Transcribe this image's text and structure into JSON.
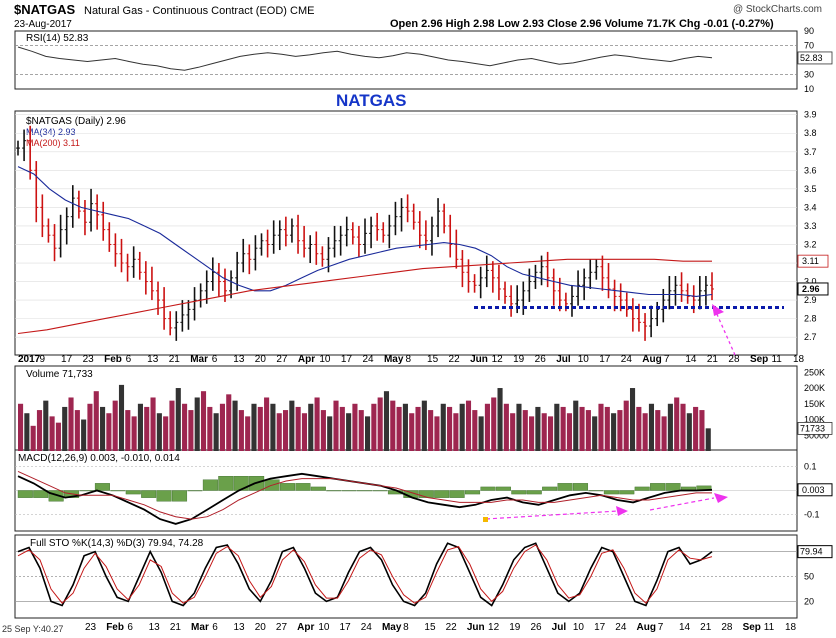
{
  "header": {
    "symbol": "$NATGAS",
    "description": "Natural Gas - Continuous Contract (EOD)",
    "exchange": "CME",
    "date": "23-Aug-2017",
    "ohlc_text": "Open 2.96  High 2.98  Low 2.93  Close 2.96  Volume 71.7K  Chg -0.01 (-0.27%)",
    "watermark": "@ StockCharts.com",
    "chart_label": "NATGAS"
  },
  "colors": {
    "up_bar": "#111111",
    "down_bar": "#cc1111",
    "ma34": "#1a2a9a",
    "ma200": "#c41818",
    "volume_up": "#333333",
    "volume_down": "#9e2650",
    "macd_hist": "#6aa04a",
    "annotation": "#ee33ee",
    "support_line": "#0a1aaa",
    "title_blue": "#1535c8"
  },
  "chart_data": [
    {
      "type": "line",
      "panel": "rsi",
      "legend": "RSI(14) 52.83",
      "ylim": [
        10,
        90
      ],
      "y_ticks": [
        "90",
        "70",
        "50",
        "30",
        "10"
      ],
      "last_value_label": "52.83",
      "series": [
        {
          "name": "RSI(14)",
          "values": [
            68,
            62,
            55,
            52,
            50,
            48,
            50,
            52,
            48,
            44,
            42,
            38,
            36,
            40,
            45,
            50,
            55,
            58,
            60,
            58,
            55,
            57,
            60,
            62,
            58,
            55,
            53,
            56,
            60,
            58,
            54,
            50,
            48,
            45,
            42,
            46,
            50,
            52,
            48,
            44,
            46,
            50,
            54,
            57,
            55,
            52,
            50,
            48,
            52,
            55,
            53
          ]
        }
      ]
    },
    {
      "type": "candlestick",
      "panel": "price",
      "legend": [
        "$NATGAS (Daily) 2.96",
        "MA(34) 2.93",
        "MA(200) 3.11"
      ],
      "ylim": [
        2.62,
        3.92
      ],
      "y_ticks": [
        "3.9",
        "3.8",
        "3.7",
        "3.6",
        "3.5",
        "3.4",
        "3.3",
        "3.2",
        "3.1",
        "3.0",
        "2.9",
        "2.8",
        "2.7"
      ],
      "x_labels": [
        "2017",
        "9",
        "17",
        "23",
        "Feb",
        "6",
        "13",
        "21",
        "Mar",
        "6",
        "13",
        "20",
        "27",
        "Apr",
        "10",
        "17",
        "24",
        "May",
        "8",
        "15",
        "22",
        "Jun",
        "12",
        "19",
        "26",
        "Jul",
        "10",
        "17",
        "24",
        "Aug",
        "7",
        "14",
        "21",
        "28",
        "Sep",
        "11",
        "18"
      ],
      "closes": [
        3.72,
        3.76,
        3.6,
        3.4,
        3.3,
        3.25,
        3.18,
        3.28,
        3.35,
        3.45,
        3.38,
        3.32,
        3.42,
        3.36,
        3.28,
        3.2,
        3.15,
        3.1,
        3.08,
        3.12,
        3.05,
        3.0,
        2.95,
        2.9,
        2.8,
        2.75,
        2.78,
        2.82,
        2.85,
        2.9,
        2.95,
        3.0,
        3.05,
        3.0,
        2.95,
        3.02,
        3.1,
        3.15,
        3.12,
        3.18,
        3.22,
        3.2,
        3.25,
        3.28,
        3.25,
        3.3,
        3.22,
        3.18,
        3.2,
        3.15,
        3.12,
        3.18,
        3.22,
        3.25,
        3.28,
        3.24,
        3.2,
        3.26,
        3.3,
        3.28,
        3.25,
        3.3,
        3.35,
        3.4,
        3.38,
        3.32,
        3.25,
        3.22,
        3.3,
        3.38,
        3.3,
        3.2,
        3.12,
        3.05,
        3.0,
        2.98,
        3.02,
        3.06,
        3.02,
        2.96,
        2.92,
        2.88,
        2.9,
        2.95,
        3.0,
        3.05,
        3.08,
        3.02,
        2.95,
        2.9,
        2.88,
        2.92,
        2.98,
        3.02,
        3.05,
        3.08,
        3.02,
        2.96,
        2.92,
        2.9,
        2.85,
        2.8,
        2.78,
        2.76,
        2.8,
        2.85,
        2.9,
        2.95,
        2.98,
        2.95,
        2.92,
        2.9,
        2.95,
        2.98,
        2.96
      ],
      "series": [
        {
          "name": "MA(34)",
          "values": [
            3.62,
            3.58,
            3.5,
            3.44,
            3.4,
            3.38,
            3.36,
            3.34,
            3.3,
            3.26,
            3.2,
            3.14,
            3.08,
            3.02,
            2.98,
            2.95,
            2.95,
            2.98,
            3.02,
            3.06,
            3.09,
            3.12,
            3.14,
            3.16,
            3.18,
            3.19,
            3.2,
            3.21,
            3.2,
            3.18,
            3.14,
            3.08,
            3.04,
            3.02,
            3.0,
            2.98,
            2.97,
            2.96,
            2.95,
            2.94,
            2.93,
            2.93,
            2.93,
            2.92,
            2.93
          ]
        },
        {
          "name": "MA(200)",
          "values": [
            2.72,
            2.74,
            2.77,
            2.8,
            2.83,
            2.86,
            2.89,
            2.92,
            2.95,
            2.97,
            2.99,
            3.01,
            3.03,
            3.05,
            3.07,
            3.08,
            3.09,
            3.1,
            3.11,
            3.12,
            3.12,
            3.12,
            3.12,
            3.11,
            3.11
          ]
        }
      ],
      "last_value_label": "2.96",
      "ma200_label": "3.11",
      "support_level": 2.86,
      "title_annotation": "NATGAS"
    },
    {
      "type": "bar",
      "panel": "volume",
      "legend": "Volume 71,733",
      "y_ticks": [
        "250K",
        "200K",
        "150K",
        "100K",
        "50000"
      ],
      "last_value_label": "71733",
      "values": [
        150,
        120,
        80,
        130,
        160,
        110,
        90,
        140,
        170,
        130,
        100,
        150,
        190,
        140,
        120,
        160,
        210,
        130,
        110,
        150,
        140,
        170,
        120,
        110,
        160,
        200,
        150,
        130,
        170,
        190,
        140,
        120,
        150,
        180,
        160,
        130,
        110,
        150,
        140,
        170,
        150,
        120,
        130,
        160,
        140,
        120,
        150,
        170,
        130,
        110,
        160,
        140,
        120,
        150,
        130,
        110,
        150,
        170,
        190,
        160,
        140,
        150,
        120,
        140,
        160,
        130,
        110,
        150,
        140,
        120,
        150,
        160,
        130,
        110,
        150,
        170,
        200,
        150,
        120,
        150,
        130,
        110,
        140,
        120,
        110,
        150,
        140,
        120,
        160,
        140,
        130,
        110,
        150,
        140,
        120,
        130,
        160,
        200,
        140,
        120,
        150,
        130,
        110,
        150,
        170,
        150,
        120,
        140,
        130,
        72
      ]
    },
    {
      "type": "line",
      "panel": "macd",
      "legend": "MACD(12,26,9) 0.003, -0.010, 0.014",
      "y_ticks": [
        "0.1",
        "0.0",
        "-0.1"
      ],
      "last_value_label": "0.003",
      "series": [
        {
          "name": "MACD",
          "values": [
            0.06,
            0.03,
            -0.01,
            -0.03,
            -0.02,
            0.0,
            -0.02,
            -0.05,
            -0.08,
            -0.12,
            -0.14,
            -0.12,
            -0.08,
            -0.04,
            0.0,
            0.03,
            0.05,
            0.06,
            0.07,
            0.06,
            0.05,
            0.04,
            0.03,
            0.02,
            0.0,
            -0.03,
            -0.05,
            -0.06,
            -0.07,
            -0.06,
            -0.04,
            -0.03,
            -0.05,
            -0.06,
            -0.04,
            -0.02,
            -0.01,
            -0.02,
            -0.04,
            -0.05,
            -0.03,
            -0.01,
            0.0,
            0.0,
            0.003
          ]
        },
        {
          "name": "Signal",
          "values": [
            0.08,
            0.05,
            0.02,
            -0.01,
            -0.02,
            -0.02,
            -0.02,
            -0.04,
            -0.06,
            -0.09,
            -0.11,
            -0.12,
            -0.11,
            -0.08,
            -0.04,
            -0.01,
            0.02,
            0.04,
            0.05,
            0.05,
            0.05,
            0.04,
            0.03,
            0.02,
            0.01,
            -0.01,
            -0.03,
            -0.04,
            -0.05,
            -0.05,
            -0.05,
            -0.04,
            -0.04,
            -0.05,
            -0.05,
            -0.04,
            -0.03,
            -0.02,
            -0.03,
            -0.04,
            -0.04,
            -0.03,
            -0.02,
            -0.01,
            -0.01
          ]
        }
      ]
    },
    {
      "type": "line",
      "panel": "stochastic",
      "legend": "Full STO %K(14,3) %D(3) 79.94, 74.28",
      "y_ticks": [
        "80",
        "50",
        "20"
      ],
      "last_value_label": "79.94",
      "series": [
        {
          "name": "%K(14,3)",
          "values": [
            80,
            85,
            60,
            20,
            15,
            40,
            75,
            80,
            50,
            25,
            20,
            50,
            80,
            55,
            20,
            15,
            30,
            60,
            85,
            88,
            65,
            35,
            20,
            45,
            80,
            85,
            60,
            30,
            20,
            25,
            55,
            80,
            85,
            70,
            40,
            20,
            15,
            30,
            65,
            90,
            85,
            55,
            25,
            15,
            40,
            70,
            85,
            90,
            60,
            30,
            20,
            30,
            60,
            85,
            80,
            50,
            20,
            15,
            45,
            80,
            85,
            65,
            70,
            80
          ]
        },
        {
          "name": "%D(3)",
          "values": [
            75,
            82,
            70,
            35,
            18,
            30,
            60,
            78,
            62,
            35,
            22,
            40,
            70,
            62,
            30,
            18,
            25,
            50,
            78,
            86,
            75,
            45,
            25,
            38,
            70,
            82,
            68,
            40,
            24,
            24,
            45,
            72,
            82,
            76,
            50,
            28,
            18,
            25,
            55,
            82,
            86,
            65,
            35,
            20,
            32,
            60,
            80,
            88,
            70,
            40,
            24,
            28,
            50,
            78,
            82,
            60,
            30,
            18,
            35,
            70,
            82,
            72,
            70,
            74
          ]
        }
      ]
    }
  ],
  "footer": {
    "cursor_readout": "25 Sep Y:40.27",
    "x_labels": [
      "23",
      "Feb",
      "6",
      "13",
      "21",
      "Mar",
      "6",
      "13",
      "20",
      "27",
      "Apr",
      "10",
      "17",
      "24",
      "May",
      "8",
      "15",
      "22",
      "Jun",
      "12",
      "19",
      "26",
      "Jul",
      "10",
      "17",
      "24",
      "Aug",
      "7",
      "14",
      "21",
      "28",
      "Sep",
      "11",
      "18"
    ]
  }
}
